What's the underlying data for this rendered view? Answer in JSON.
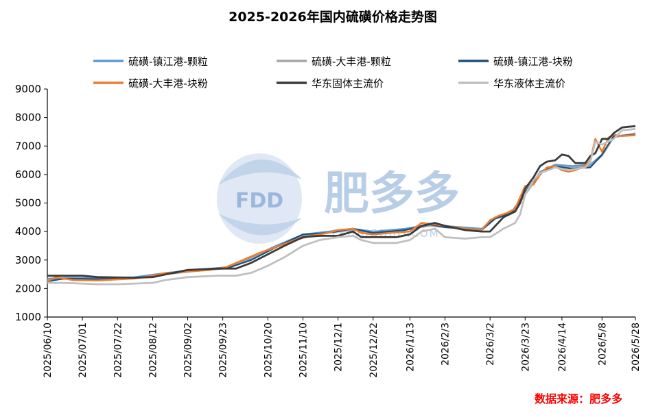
{
  "chart_data": {
    "type": "line",
    "title": "2025-2026年国内硫磺价格走势图",
    "ylim": [
      1000,
      9000
    ],
    "yticks": [
      1000,
      2000,
      3000,
      4000,
      5000,
      6000,
      7000,
      8000,
      9000
    ],
    "xrange": [
      "2025/06/10",
      "2026/05/28"
    ],
    "xticks": [
      "2025/06/10",
      "2025/07/01",
      "2025/07/22",
      "2025/08/12",
      "2025/09/02",
      "2025/09/23",
      "2025/10/20",
      "2025/11/10",
      "2025/12/1",
      "2025/12/22",
      "2026/1/13",
      "2026/2/3",
      "2026/3/2",
      "2026/3/23",
      "2026/4/14",
      "2026/5/8",
      "2026/5/28"
    ],
    "legend_position": "top",
    "grid": false,
    "series": [
      {
        "name": "硫磺-镇江港-颗粒",
        "color": "#5B9BD5",
        "width": 2.2,
        "x": [
          "2025/06/10",
          "2025/06/20",
          "2025/07/10",
          "2025/08/01",
          "2025/08/20",
          "2025/09/05",
          "2025/09/25",
          "2025/10/10",
          "2025/10/25",
          "2025/11/10",
          "2025/11/25",
          "2025/12/10",
          "2025/12/22",
          "2026/01/10",
          "2026/01/25",
          "2026/02/03",
          "2026/02/25",
          "2026/03/05",
          "2026/03/15",
          "2026/03/25",
          "2026/04/01",
          "2026/04/10",
          "2026/04/20",
          "2026/05/01",
          "2026/05/08",
          "2026/05/15",
          "2026/05/28"
        ],
        "y": [
          2350,
          2380,
          2380,
          2400,
          2550,
          2650,
          2750,
          3100,
          3500,
          3900,
          4000,
          4100,
          4000,
          4100,
          4250,
          4200,
          4100,
          4500,
          4700,
          5500,
          6100,
          6350,
          6300,
          6350,
          6700,
          7350,
          7400
        ]
      },
      {
        "name": "硫磺-大丰港-颗粒",
        "color": "#A5A5A5",
        "width": 2.2,
        "x": [
          "2025/06/10",
          "2025/06/20",
          "2025/07/10",
          "2025/08/01",
          "2025/08/20",
          "2025/09/05",
          "2025/09/25",
          "2025/10/10",
          "2025/10/25",
          "2025/11/10",
          "2025/11/25",
          "2025/12/10",
          "2025/12/22",
          "2026/01/10",
          "2026/01/25",
          "2026/02/03",
          "2026/02/25",
          "2026/03/05",
          "2026/03/15",
          "2026/03/25",
          "2026/04/01",
          "2026/04/10",
          "2026/04/20",
          "2026/05/01",
          "2026/05/08",
          "2026/05/15",
          "2026/05/28"
        ],
        "y": [
          2300,
          2330,
          2330,
          2350,
          2500,
          2600,
          2700,
          3050,
          3450,
          3850,
          3950,
          4050,
          3950,
          4050,
          4200,
          4150,
          4050,
          4450,
          4650,
          5450,
          6050,
          6300,
          6250,
          6300,
          6650,
          7300,
          7450
        ]
      },
      {
        "name": "硫磺-镇江港-块粉",
        "color": "#1F4E79",
        "width": 2.2,
        "x": [
          "2025/06/10",
          "2025/06/20",
          "2025/07/10",
          "2025/08/01",
          "2025/08/20",
          "2025/09/05",
          "2025/09/25",
          "2025/10/10",
          "2025/10/25",
          "2025/11/10",
          "2025/11/25",
          "2025/12/10",
          "2025/12/22",
          "2026/01/10",
          "2026/01/25",
          "2026/02/03",
          "2026/02/25",
          "2026/03/05",
          "2026/03/15",
          "2026/03/25",
          "2026/04/01",
          "2026/04/10",
          "2026/04/20",
          "2026/05/01",
          "2026/05/08",
          "2026/05/15",
          "2026/05/28"
        ],
        "y": [
          2250,
          2350,
          2330,
          2350,
          2500,
          2650,
          2700,
          3000,
          3450,
          3900,
          3950,
          4100,
          3950,
          4050,
          4250,
          4150,
          4050,
          4450,
          4650,
          5550,
          6050,
          6300,
          6200,
          6250,
          6700,
          7350,
          7400
        ]
      },
      {
        "name": "硫磺-大丰港-块粉",
        "color": "#ED7D31",
        "width": 2.6,
        "x": [
          "2025/06/10",
          "2025/06/15",
          "2025/06/20",
          "2025/06/25",
          "2025/07/10",
          "2025/07/22",
          "2025/08/01",
          "2025/08/12",
          "2025/08/20",
          "2025/09/02",
          "2025/09/15",
          "2025/09/25",
          "2025/10/05",
          "2025/10/15",
          "2025/10/25",
          "2025/11/05",
          "2025/11/15",
          "2025/11/25",
          "2025/12/01",
          "2025/12/10",
          "2025/12/15",
          "2025/12/22",
          "2026/01/01",
          "2026/01/13",
          "2026/01/20",
          "2026/01/28",
          "2026/02/03",
          "2026/02/15",
          "2026/02/25",
          "2026/03/02",
          "2026/03/07",
          "2026/03/12",
          "2026/03/17",
          "2026/03/20",
          "2026/03/23",
          "2026/03/28",
          "2026/04/01",
          "2026/04/05",
          "2026/04/10",
          "2026/04/14",
          "2026/04/18",
          "2026/04/22",
          "2026/04/28",
          "2026/05/01",
          "2026/05/04",
          "2026/05/08",
          "2026/05/12",
          "2026/05/15",
          "2026/05/20",
          "2026/05/28"
        ],
        "y": [
          2250,
          2400,
          2350,
          2300,
          2280,
          2320,
          2350,
          2450,
          2550,
          2600,
          2650,
          2750,
          3000,
          3250,
          3450,
          3700,
          3850,
          3950,
          4050,
          4100,
          3950,
          3900,
          3950,
          4000,
          4300,
          4250,
          4200,
          4100,
          4050,
          4400,
          4550,
          4650,
          4800,
          5200,
          5600,
          5650,
          6000,
          6250,
          6300,
          6150,
          6100,
          6150,
          6300,
          6500,
          7250,
          6800,
          7300,
          7400,
          7350,
          7380
        ]
      },
      {
        "name": "华东固体主流价",
        "color": "#3A3A3A",
        "width": 2.8,
        "x": [
          "2025/06/10",
          "2025/07/01",
          "2025/07/10",
          "2025/08/01",
          "2025/08/12",
          "2025/08/20",
          "2025/09/02",
          "2025/09/20",
          "2025/10/01",
          "2025/10/10",
          "2025/10/20",
          "2025/10/30",
          "2025/11/10",
          "2025/11/20",
          "2025/12/01",
          "2025/12/10",
          "2025/12/15",
          "2025/12/22",
          "2026/01/05",
          "2026/01/13",
          "2026/01/20",
          "2026/01/28",
          "2026/02/03",
          "2026/02/15",
          "2026/02/25",
          "2026/03/02",
          "2026/03/10",
          "2026/03/17",
          "2026/03/20",
          "2026/03/23",
          "2026/03/28",
          "2026/04/01",
          "2026/04/05",
          "2026/04/10",
          "2026/04/14",
          "2026/04/18",
          "2026/04/22",
          "2026/04/28",
          "2026/05/01",
          "2026/05/04",
          "2026/05/08",
          "2026/05/12",
          "2026/05/15",
          "2026/05/20",
          "2026/05/28"
        ],
        "y": [
          2450,
          2450,
          2400,
          2380,
          2400,
          2500,
          2650,
          2700,
          2700,
          2900,
          3200,
          3500,
          3800,
          3850,
          3850,
          4000,
          3800,
          3800,
          3800,
          3900,
          4200,
          4300,
          4200,
          4050,
          4000,
          4000,
          4500,
          4700,
          5000,
          5500,
          5900,
          6300,
          6450,
          6500,
          6700,
          6650,
          6400,
          6400,
          6650,
          6750,
          7250,
          7250,
          7450,
          7650,
          7700
        ]
      },
      {
        "name": "华东液体主流价",
        "color": "#BFBFBF",
        "width": 2.8,
        "x": [
          "2025/06/10",
          "2025/06/20",
          "2025/07/10",
          "2025/07/22",
          "2025/08/12",
          "2025/08/20",
          "2025/09/02",
          "2025/09/20",
          "2025/10/01",
          "2025/10/10",
          "2025/10/20",
          "2025/10/30",
          "2025/11/10",
          "2025/11/20",
          "2025/12/01",
          "2025/12/10",
          "2025/12/15",
          "2025/12/22",
          "2026/01/05",
          "2026/01/13",
          "2026/01/20",
          "2026/01/28",
          "2026/02/03",
          "2026/02/15",
          "2026/02/25",
          "2026/03/02",
          "2026/03/10",
          "2026/03/17",
          "2026/03/20",
          "2026/03/23",
          "2026/03/28",
          "2026/04/01",
          "2026/04/10",
          "2026/04/18",
          "2026/04/28",
          "2026/05/01",
          "2026/05/04",
          "2026/05/08",
          "2026/05/15",
          "2026/05/20",
          "2026/05/28"
        ],
        "y": [
          2200,
          2200,
          2150,
          2150,
          2200,
          2300,
          2400,
          2450,
          2450,
          2550,
          2800,
          3100,
          3500,
          3700,
          3800,
          3850,
          3700,
          3600,
          3600,
          3700,
          4000,
          4100,
          3800,
          3750,
          3800,
          3800,
          4100,
          4300,
          4600,
          5300,
          5800,
          6050,
          6250,
          6150,
          6250,
          6450,
          7150,
          7050,
          7250,
          7550,
          7600
        ]
      }
    ]
  },
  "watermark": {
    "brand_cn": "肥多多",
    "logo_text": "FDD",
    "url": "FEIDUODUO.COM"
  },
  "source": {
    "text": "数据来源：肥多多",
    "color": "#FF0000"
  }
}
